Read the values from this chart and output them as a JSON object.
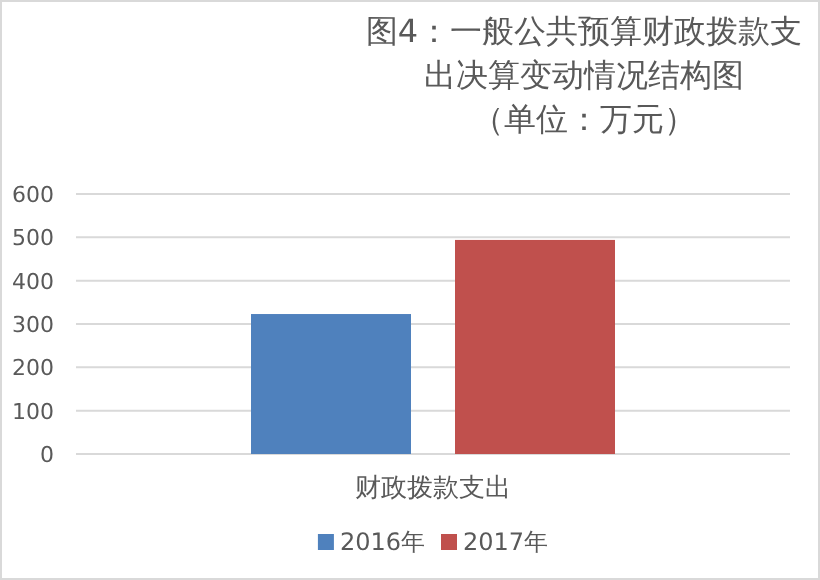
{
  "chart_data": {
    "type": "bar",
    "title": "图4：一般公共预算财政拨款支出决算变动情况结构图",
    "subtitle": "（单位：万元）",
    "categories": [
      "财政拨款支出"
    ],
    "series": [
      {
        "name": "2016年",
        "color": "#4f81bd",
        "values": [
          323
        ]
      },
      {
        "name": "2017年",
        "color": "#c0504d",
        "values": [
          494
        ]
      }
    ],
    "ylim": [
      0,
      600
    ],
    "yticks": [
      0,
      100,
      200,
      300,
      400,
      500,
      600
    ],
    "grid": "y",
    "legend": "bottom"
  }
}
